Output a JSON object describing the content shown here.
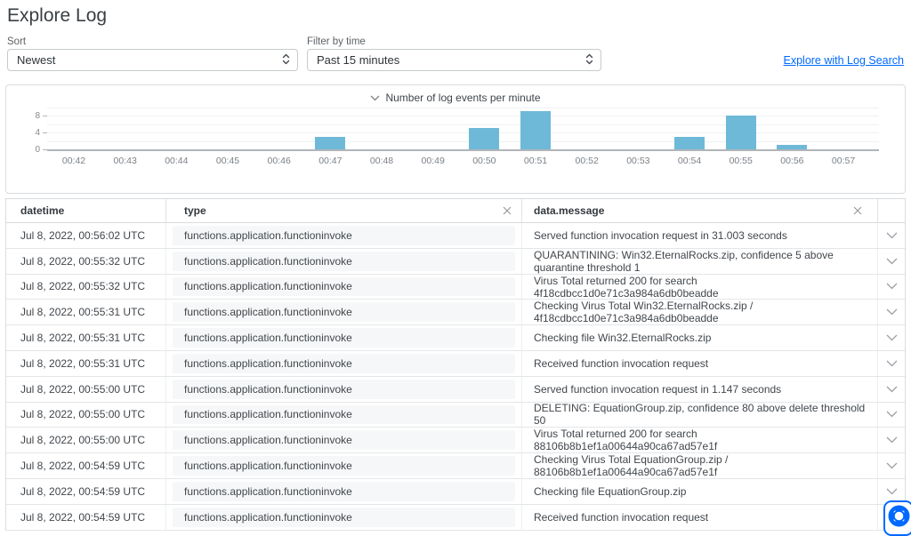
{
  "page": {
    "title": "Explore Log"
  },
  "controls": {
    "sort": {
      "label": "Sort",
      "value": "Newest"
    },
    "time_filter": {
      "label": "Filter by time",
      "value": "Past 15 minutes"
    },
    "log_search_link": "Explore with Log Search"
  },
  "chart_data": {
    "type": "bar",
    "title": "Number of log events per minute",
    "categories": [
      "00:42",
      "00:43",
      "00:44",
      "00:45",
      "00:46",
      "00:47",
      "00:48",
      "00:49",
      "00:50",
      "00:51",
      "00:52",
      "00:53",
      "00:54",
      "00:55",
      "00:56",
      "00:57"
    ],
    "values": [
      0,
      0,
      0,
      0,
      0,
      3,
      0,
      0,
      5,
      9,
      0,
      0,
      3,
      8,
      1,
      0
    ],
    "xlabel": "",
    "ylabel": "",
    "yticks": [
      0,
      4,
      8
    ],
    "ylim": [
      0,
      13
    ],
    "gridline_values": [
      2,
      4,
      6,
      8,
      10
    ],
    "grid": true,
    "legend": false,
    "bar_color": "#6fb9d8"
  },
  "table": {
    "columns": [
      {
        "key": "datetime",
        "label": "datetime",
        "clearable": false
      },
      {
        "key": "type",
        "label": "type",
        "clearable": true
      },
      {
        "key": "message",
        "label": "data.message",
        "clearable": true
      }
    ],
    "rows": [
      {
        "datetime": "Jul 8, 2022, 00:56:02 UTC",
        "type": "functions.application.functioninvoke",
        "message": "Served function invocation request in 31.003 seconds"
      },
      {
        "datetime": "Jul 8, 2022, 00:55:32 UTC",
        "type": "functions.application.functioninvoke",
        "message": "QUARANTINING: Win32.EternalRocks.zip, confidence 5 above quarantine threshold 1"
      },
      {
        "datetime": "Jul 8, 2022, 00:55:32 UTC",
        "type": "functions.application.functioninvoke",
        "message": "Virus Total returned 200 for search 4f18cdbcc1d0e71c3a984a6db0beadde"
      },
      {
        "datetime": "Jul 8, 2022, 00:55:31 UTC",
        "type": "functions.application.functioninvoke",
        "message": "Checking Virus Total Win32.EternalRocks.zip / 4f18cdbcc1d0e71c3a984a6db0beadde"
      },
      {
        "datetime": "Jul 8, 2022, 00:55:31 UTC",
        "type": "functions.application.functioninvoke",
        "message": "Checking file Win32.EternalRocks.zip"
      },
      {
        "datetime": "Jul 8, 2022, 00:55:31 UTC",
        "type": "functions.application.functioninvoke",
        "message": "Received function invocation request"
      },
      {
        "datetime": "Jul 8, 2022, 00:55:00 UTC",
        "type": "functions.application.functioninvoke",
        "message": "Served function invocation request in 1.147 seconds"
      },
      {
        "datetime": "Jul 8, 2022, 00:55:00 UTC",
        "type": "functions.application.functioninvoke",
        "message": "DELETING: EquationGroup.zip, confidence 80 above delete threshold 50"
      },
      {
        "datetime": "Jul 8, 2022, 00:55:00 UTC",
        "type": "functions.application.functioninvoke",
        "message": "Virus Total returned 200 for search 88106b8b1ef1a00644a90ca67ad57e1f"
      },
      {
        "datetime": "Jul 8, 2022, 00:54:59 UTC",
        "type": "functions.application.functioninvoke",
        "message": "Checking Virus Total EquationGroup.zip / 88106b8b1ef1a00644a90ca67ad57e1f"
      },
      {
        "datetime": "Jul 8, 2022, 00:54:59 UTC",
        "type": "functions.application.functioninvoke",
        "message": "Checking file EquationGroup.zip"
      },
      {
        "datetime": "Jul 8, 2022, 00:54:59 UTC",
        "type": "functions.application.functioninvoke",
        "message": "Received function invocation request"
      }
    ]
  },
  "colors": {
    "accent": "#0069ff",
    "bar": "#6fb9d8"
  }
}
